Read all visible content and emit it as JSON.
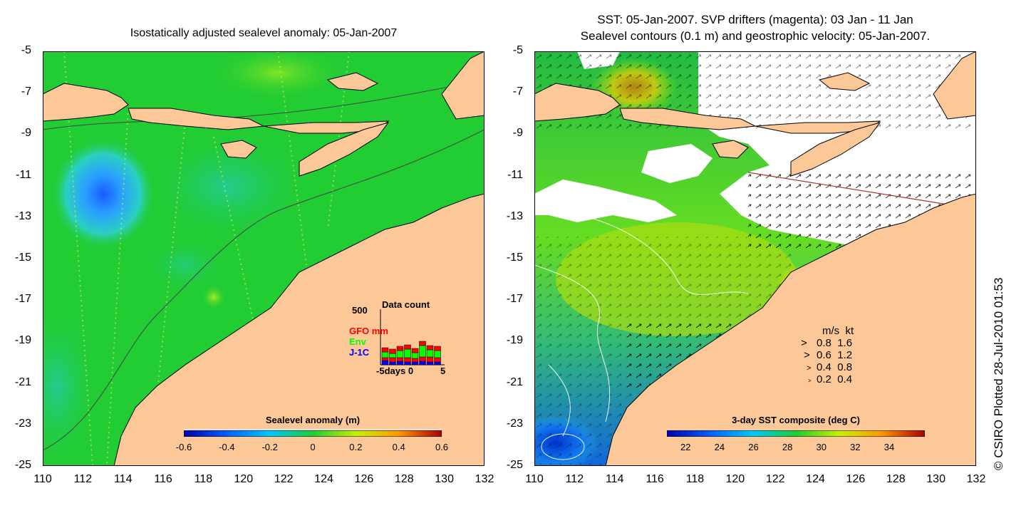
{
  "left_panel": {
    "title": "Isostatically adjusted sealevel anomaly: 05-Jan-2007",
    "colorbar": {
      "label": "Sealevel anomaly (m)",
      "ticks": [
        "-0.6",
        "-0.4",
        "-0.2",
        "0",
        "0.2",
        "0.4",
        "0.6"
      ]
    },
    "data_count": {
      "label": "Data count",
      "max_label": "500",
      "legend": [
        {
          "name": "GFO mm",
          "color": "#ff0000"
        },
        {
          "name": "Env",
          "color": "#00ff00"
        },
        {
          "name": "J-1C",
          "color": "#0000ff"
        }
      ],
      "axis_left": "-5",
      "axis_unit": "days",
      "axis_mid": "0",
      "axis_right": "5"
    }
  },
  "right_panel": {
    "title_line1": "SST: 05-Jan-2007. SVP drifters (magenta): 03 Jan - 11 Jan",
    "title_line2": "Sealevel contours (0.1 m) and geostrophic velocity: 05-Jan-2007.",
    "colorbar": {
      "label": "3-day SST composite (deg C)",
      "ticks": [
        "22",
        "24",
        "26",
        "28",
        "30",
        "32",
        "34"
      ]
    },
    "velocity_key": {
      "header_ms": "m/s",
      "header_kt": "kt",
      "rows": [
        {
          "ms": "0.8",
          "kt": "1.6"
        },
        {
          "ms": "0.6",
          "kt": "1.2"
        },
        {
          "ms": "0.4",
          "kt": "0.8"
        },
        {
          "ms": "0.2",
          "kt": "0.4"
        }
      ]
    }
  },
  "axes": {
    "y_ticks": [
      "-5",
      "-7",
      "-9",
      "-11",
      "-13",
      "-15",
      "-17",
      "-19",
      "-21",
      "-23",
      "-25"
    ],
    "x_ticks": [
      "110",
      "112",
      "114",
      "116",
      "118",
      "120",
      "122",
      "124",
      "126",
      "128",
      "130",
      "132"
    ]
  },
  "credit": "© CSIRO Plotted 28-Jul-2010 01:53",
  "colors": {
    "land": "#fcc898",
    "ocean_green": "#22cc33",
    "bar_red": "#ff0000",
    "bar_green": "#00ff00",
    "bar_blue": "#0000ff"
  }
}
